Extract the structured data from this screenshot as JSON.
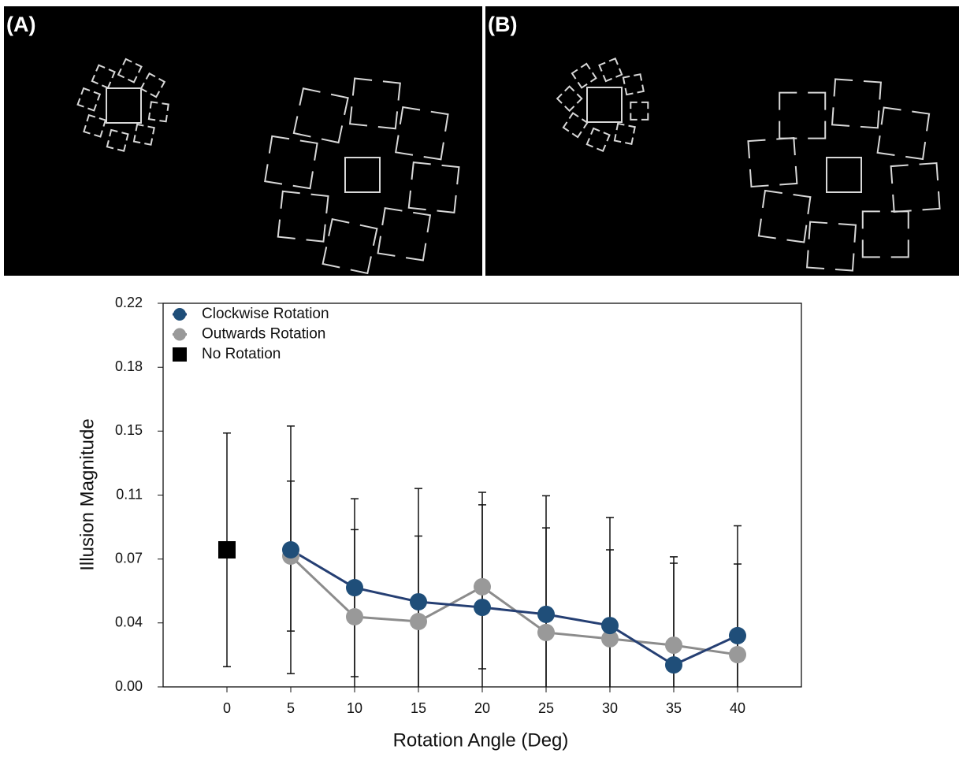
{
  "panels": [
    {
      "label": "(A)"
    },
    {
      "label": "(B)"
    }
  ],
  "chart_data": {
    "type": "line",
    "xlabel": "Rotation Angle (Deg)",
    "ylabel": "Illusion Magnitude",
    "xlim": [
      -5,
      45
    ],
    "xticks": [
      0,
      5,
      10,
      15,
      20,
      25,
      30,
      35,
      40
    ],
    "ylim": [
      0,
      0.22
    ],
    "yticks": [
      {
        "value": 0,
        "label": "0.00"
      },
      {
        "value": 0.0367,
        "label": "0.04"
      },
      {
        "value": 0.0733,
        "label": "0.07"
      },
      0.11,
      {
        "value": 0.1467,
        "label": "0.15"
      },
      {
        "value": 0.1833,
        "label": "0.18"
      },
      0.22
    ],
    "legend": "upper left",
    "series": [
      {
        "name": "Clockwise Rotation",
        "color": "#1f4e79",
        "line_color": "#253f73",
        "marker": "circle",
        "x": [
          5,
          10,
          15,
          20,
          25,
          30,
          35,
          40
        ],
        "values": [
          0.0786,
          0.0569,
          0.0488,
          0.0456,
          0.0416,
          0.0352,
          0.0126,
          0.0294
        ],
        "errors": [
          0.071,
          0.051,
          0.065,
          0.066,
          0.068,
          0.062,
          0.062,
          0.063
        ]
      },
      {
        "name": "Outwards Rotation",
        "color": "#999999",
        "line_color": "#8c8c8c",
        "marker": "circle",
        "x": [
          5,
          10,
          15,
          20,
          25,
          30,
          35,
          40
        ],
        "values": [
          0.075,
          0.0402,
          0.0375,
          0.0574,
          0.0312,
          0.0276,
          0.0239,
          0.0185
        ],
        "errors": [
          0.043,
          0.05,
          0.049,
          0.047,
          0.06,
          0.051,
          0.047,
          0.052
        ]
      },
      {
        "name": "No Rotation",
        "color": "#000000",
        "line_color": "#000000",
        "marker": "square",
        "x": [
          0
        ],
        "values": [
          0.0786
        ],
        "errors": [
          0.067
        ]
      }
    ]
  }
}
